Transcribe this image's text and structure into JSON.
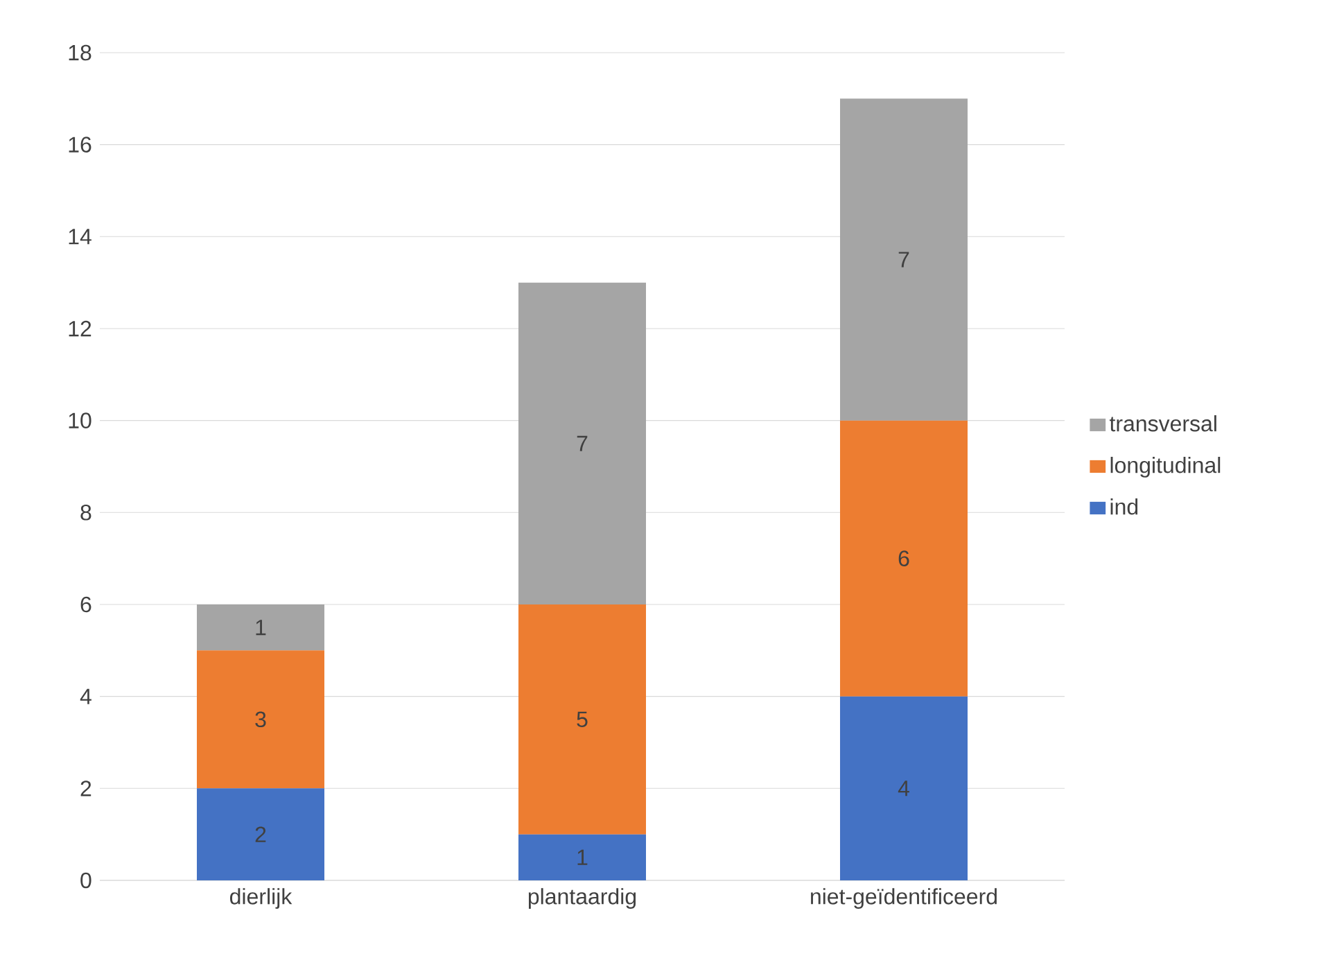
{
  "chart_data": {
    "type": "bar",
    "stacked": true,
    "categories": [
      "dierlijk",
      "plantaardig",
      "niet-geïdentificeerd"
    ],
    "series": [
      {
        "name": "ind",
        "color": "#4472c4",
        "values": [
          2,
          1,
          4
        ]
      },
      {
        "name": "longitudinal",
        "color": "#ed7d31",
        "values": [
          3,
          5,
          6
        ]
      },
      {
        "name": "transversal",
        "color": "#a5a5a5",
        "values": [
          1,
          7,
          7
        ]
      }
    ],
    "ylim": [
      0,
      18
    ],
    "yticks": [
      0,
      2,
      4,
      6,
      8,
      10,
      12,
      14,
      16,
      18
    ],
    "grid": "y",
    "legend": "right",
    "data_labels": true
  }
}
